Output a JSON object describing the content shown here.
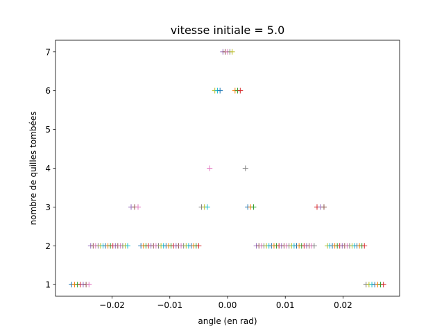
{
  "chart_data": {
    "type": "scatter",
    "title": "vitesse initiale = 5.0",
    "xlabel": "angle (en rad)",
    "ylabel": "nombre de quilles tombées",
    "xlim": [
      -0.0298,
      0.0298
    ],
    "ylim": [
      0.7,
      7.3
    ],
    "xticks": [
      -0.02,
      -0.01,
      0.0,
      0.01,
      0.02
    ],
    "xtick_labels": [
      "−0.02",
      "−0.01",
      "0.00",
      "0.01",
      "0.02"
    ],
    "yticks": [
      1,
      2,
      3,
      4,
      5,
      6,
      7
    ],
    "ytick_labels": [
      "1",
      "2",
      "3",
      "4",
      "5",
      "6",
      "7"
    ],
    "marker": "+",
    "grid": false,
    "color_cycle": [
      "#1f77b4",
      "#ff7f0e",
      "#2ca02c",
      "#d62728",
      "#9467bd",
      "#8c564b",
      "#e377c2",
      "#7f7f7f",
      "#bcbd22",
      "#17becf"
    ],
    "points": [
      {
        "y": 1,
        "x_start": -0.027,
        "x_end": -0.024,
        "count": 7
      },
      {
        "y": 1,
        "x_start": 0.024,
        "x_end": 0.027,
        "count": 7
      },
      {
        "y": 2,
        "x_start": -0.0237,
        "x_end": -0.0173,
        "count": 16
      },
      {
        "y": 2,
        "x_start": -0.015,
        "x_end": -0.005,
        "count": 24
      },
      {
        "y": 2,
        "x_start": 0.005,
        "x_end": 0.015,
        "count": 24
      },
      {
        "y": 2,
        "x_start": 0.0173,
        "x_end": 0.0237,
        "count": 16
      },
      {
        "y": 3,
        "x_start": -0.0167,
        "x_end": -0.0155,
        "count": 3
      },
      {
        "y": 3,
        "x_start": -0.0045,
        "x_end": -0.0035,
        "count": 3
      },
      {
        "y": 3,
        "x_start": 0.0035,
        "x_end": 0.0045,
        "count": 3
      },
      {
        "y": 3,
        "x_start": 0.0155,
        "x_end": 0.0167,
        "count": 3
      },
      {
        "y": 4,
        "x_start": -0.0031,
        "x_end": -0.0031,
        "count": 1
      },
      {
        "y": 4,
        "x_start": 0.0031,
        "x_end": 0.0031,
        "count": 1
      },
      {
        "y": 6,
        "x_start": -0.0022,
        "x_end": -0.0013,
        "count": 3
      },
      {
        "y": 6,
        "x_start": 0.0013,
        "x_end": 0.0022,
        "count": 3
      },
      {
        "y": 7,
        "x_start": -0.0008,
        "x_end": 0.0008,
        "count": 5
      }
    ]
  }
}
